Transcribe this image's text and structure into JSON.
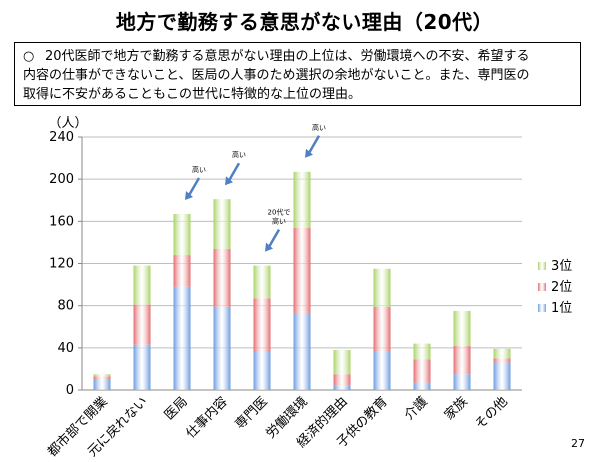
{
  "title": "地方で勤務する意思がない理由（20代）",
  "summary": {
    "bullet": "○",
    "lines": [
      "20代医師で地方で勤務する意思がない理由の上位は、労働環境への不安、希望する",
      "内容の仕事ができないこと、医局の人事のため選択の余地がないこと。また、専門医の",
      "取得に不安があることもこの世代に特徴的な上位の理由。"
    ]
  },
  "page_number": "27",
  "chart_data": {
    "type": "bar",
    "stacked": true,
    "ylabel": "（人）",
    "ylim": [
      0,
      240
    ],
    "yticks": [
      0,
      40,
      80,
      120,
      160,
      200,
      240
    ],
    "grid": true,
    "legend_position": "right",
    "categories": [
      "都市部で開業",
      "元に戻れない",
      "医局",
      "仕事内容",
      "専門医",
      "労働環境",
      "経済的理由",
      "子供の教育",
      "介護",
      "家族",
      "その他"
    ],
    "series": [
      {
        "name": "1位",
        "color": "#6b9be0",
        "values": [
          10,
          43,
          98,
          79,
          36,
          73,
          4,
          37,
          7,
          15,
          26
        ]
      },
      {
        "name": "2位",
        "color": "#e46c70",
        "values": [
          3,
          38,
          30,
          55,
          51,
          81,
          11,
          42,
          22,
          27,
          4
        ]
      },
      {
        "name": "3位",
        "color": "#a8d264",
        "values": [
          2,
          37,
          39,
          47,
          31,
          53,
          23,
          36,
          15,
          33,
          9
        ]
      }
    ],
    "annotations": [
      {
        "text": "高い",
        "category": "医局"
      },
      {
        "text": "高い",
        "category": "仕事内容"
      },
      {
        "text": "20代で\n高い",
        "category": "専門医"
      },
      {
        "text": "高い",
        "category": "労働環境"
      }
    ]
  }
}
